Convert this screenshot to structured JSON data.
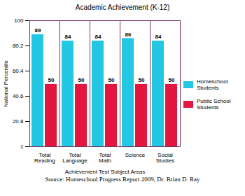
{
  "chart_data": {
    "type": "bar",
    "title": "Academic Achievement (K-12)",
    "x_label": "Achievement Test Subject Areas",
    "y_label": "National Percentile",
    "caption": "Source: Homeschool Progress Report 2009, Dr. Brian D. Ray",
    "categories": [
      "Total Reading",
      "Total Language",
      "Total Math",
      "Science",
      "Social Studies"
    ],
    "series": [
      {
        "name": "Homeschool Students",
        "color": "#22c7e3",
        "values": [
          89,
          84,
          84,
          86,
          84
        ]
      },
      {
        "name": "Public School Students",
        "color": "#e3163f",
        "values": [
          50,
          50,
          50,
          50,
          50
        ]
      }
    ],
    "ylim": [
      1,
      100
    ],
    "yticks": [
      1,
      20.8,
      40.6,
      60.4,
      80.2,
      100
    ],
    "data_labels": true,
    "legend": "right"
  }
}
